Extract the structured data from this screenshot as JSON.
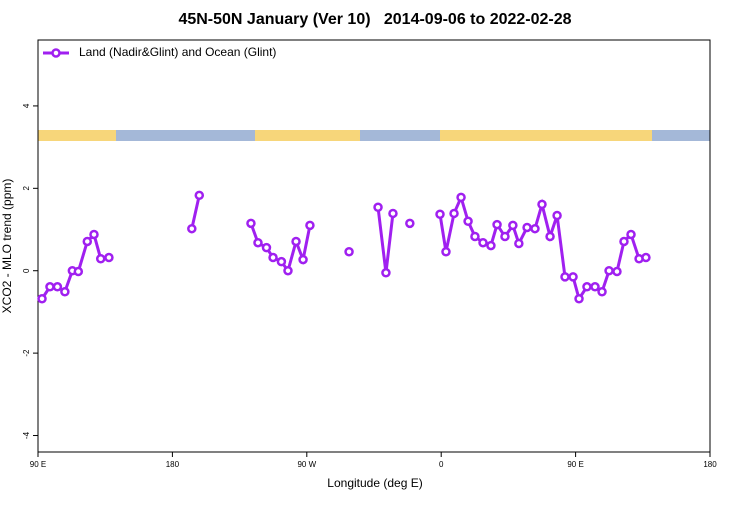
{
  "chart_data": {
    "type": "line",
    "title": "45N-50N January (Ver 10)   2014-09-06 to 2022-02-28",
    "x_label": "Longitude (deg E)",
    "y_label": "XCO2 - MLO trend (ppm)",
    "xlim": [
      -270,
      180
    ],
    "xticks": [
      {
        "value": -270,
        "label": "90 E"
      },
      {
        "value": -180,
        "label": "180"
      },
      {
        "value": -90,
        "label": "90 W"
      },
      0,
      {
        "value": 90,
        "label": "90 E"
      },
      180
    ],
    "ylim": [
      -4.4,
      5.6
    ],
    "yticks": [
      -4,
      -2,
      0,
      2,
      4
    ],
    "legend_position": "top-left",
    "series": [
      {
        "name": "Land (Nadir&Glint) and Ocean (Glint)",
        "color": "#a020f0",
        "x": [
          -267.3,
          -262,
          -257,
          -252,
          -247,
          -243,
          -237,
          -232.5,
          -228,
          -222.5,
          -195,
          -167,
          -162,
          -145,
          -127.4,
          -122.7,
          -117,
          -112.6,
          -107,
          -102.6,
          -97.2,
          -92.5,
          -87.9,
          -75,
          -61.7,
          -52,
          -42.3,
          -37,
          -32.3,
          -27,
          -21,
          -11,
          -0.8,
          3.2,
          8.6,
          13.3,
          18,
          22.6,
          28,
          33.3,
          37.4,
          42.7,
          48,
          52,
          57.5,
          62.8,
          67.5,
          72.9,
          77.6,
          82.9,
          88.3,
          92.3,
          97.6,
          103,
          107.7,
          112.4,
          117.7,
          122.4,
          127.1,
          132.5,
          137.1
        ],
        "values": [
          -0.68,
          -0.39,
          -0.39,
          -0.51,
          0,
          -0.02,
          0.71,
          0.88,
          0.29,
          0.32,
          null,
          1.02,
          1.83,
          null,
          1.15,
          0.68,
          0.56,
          0.32,
          0.22,
          0,
          0.71,
          0.27,
          1.1,
          null,
          0.46,
          null,
          1.54,
          -0.05,
          1.39,
          null,
          1.15,
          null,
          1.37,
          0.46,
          1.39,
          1.78,
          1.2,
          0.83,
          0.68,
          0.61,
          1.12,
          0.83,
          1.1,
          0.66,
          1.05,
          1.02,
          1.61,
          0.83,
          1.34,
          -0.15,
          -0.15,
          -0.68,
          -0.39,
          -0.39,
          -0.51,
          0,
          -0.02,
          0.71,
          0.88,
          0.29,
          0.32
        ]
      }
    ]
  }
}
